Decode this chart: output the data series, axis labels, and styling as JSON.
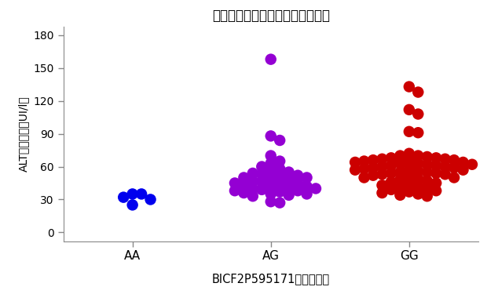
{
  "title": "ベルジアン・シェパード・ドッグ",
  "xlabel": "BICF2P595171：遵伝子型",
  "ylabel": "ALT血中濃度（UI/l）",
  "categories": [
    "AA",
    "AG",
    "GG"
  ],
  "ylim": [
    -8,
    188
  ],
  "yticks": [
    0,
    30,
    60,
    90,
    120,
    150,
    180
  ],
  "xlim": [
    0.5,
    3.5
  ],
  "background_color": "#ffffff",
  "AA_color": "#0000ee",
  "AG_color": "#9400D3",
  "GG_color": "#cc0000",
  "AA_values": [
    35,
    35,
    32,
    30,
    25
  ],
  "AG_values": [
    158,
    88,
    84,
    70,
    65,
    63,
    60,
    58,
    56,
    55,
    54,
    53,
    52,
    51,
    50,
    50,
    49,
    48,
    47,
    46,
    45,
    45,
    44,
    43,
    42,
    42,
    41,
    40,
    40,
    39,
    38,
    38,
    37,
    36,
    35,
    35,
    34,
    33,
    28,
    27
  ],
  "GG_values": [
    133,
    128,
    112,
    108,
    92,
    91,
    72,
    70,
    70,
    69,
    68,
    68,
    67,
    67,
    66,
    66,
    65,
    65,
    64,
    64,
    63,
    63,
    62,
    62,
    61,
    61,
    60,
    60,
    59,
    59,
    58,
    58,
    57,
    57,
    56,
    55,
    55,
    54,
    54,
    53,
    53,
    52,
    51,
    50,
    50,
    49,
    48,
    47,
    46,
    45,
    44,
    43,
    42,
    41,
    40,
    39,
    38,
    37,
    36,
    35,
    34,
    33
  ]
}
